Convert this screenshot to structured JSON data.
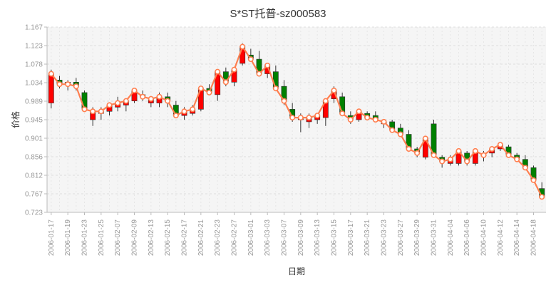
{
  "chart_data": {
    "type": "candlestick",
    "title": "S*ST托普-sz000583",
    "xlabel": "日期",
    "ylabel": "价格",
    "ylim": [
      0.723,
      1.167
    ],
    "y_ticks": [
      "1.167",
      "1.123",
      "1.078",
      "1.034",
      "0.989",
      "0.945",
      "0.901",
      "0.856",
      "0.812",
      "0.767",
      "0.723"
    ],
    "x_tick_labels": [
      "2006-01-17",
      "2006-01-19",
      "2006-01-23",
      "2006-01-25",
      "2006-02-07",
      "2006-02-09",
      "2006-02-13",
      "2006-02-15",
      "2006-02-17",
      "2006-02-21",
      "2006-02-23",
      "2006-02-27",
      "2006-03-01",
      "2006-03-03",
      "2006-03-07",
      "2006-03-09",
      "2006-03-13",
      "2006-03-15",
      "2006-03-17",
      "2006-03-21",
      "2006-03-23",
      "2006-03-27",
      "2006-03-29",
      "2006-03-31",
      "2006-04-04",
      "2006-04-06",
      "2006-04-10",
      "2006-04-12",
      "2006-04-14",
      "2006-04-18"
    ],
    "grid": true,
    "colors": {
      "up": "#ff0000",
      "down": "#008000",
      "line": "#ff7f50",
      "grid": "#dddddd",
      "plot_bg": "#f5f5f5"
    },
    "candles": [
      {
        "o": 0.985,
        "h": 1.065,
        "l": 0.972,
        "c": 1.055
      },
      {
        "o": 1.04,
        "h": 1.05,
        "l": 1.02,
        "c": 1.03
      },
      {
        "o": 1.035,
        "h": 1.04,
        "l": 1.015,
        "c": 1.03
      },
      {
        "o": 1.035,
        "h": 1.045,
        "l": 1.015,
        "c": 1.025
      },
      {
        "o": 1.01,
        "h": 1.015,
        "l": 0.965,
        "c": 0.97
      },
      {
        "o": 0.945,
        "h": 0.975,
        "l": 0.93,
        "c": 0.965
      },
      {
        "o": 0.96,
        "h": 0.975,
        "l": 0.945,
        "c": 0.965
      },
      {
        "o": 0.965,
        "h": 0.985,
        "l": 0.955,
        "c": 0.98
      },
      {
        "o": 0.975,
        "h": 1.0,
        "l": 0.965,
        "c": 0.985
      },
      {
        "o": 0.98,
        "h": 0.995,
        "l": 0.965,
        "c": 0.99
      },
      {
        "o": 0.99,
        "h": 1.02,
        "l": 0.985,
        "c": 1.015
      },
      {
        "o": 1.005,
        "h": 1.015,
        "l": 0.99,
        "c": 1.0
      },
      {
        "o": 0.985,
        "h": 1.0,
        "l": 0.975,
        "c": 0.995
      },
      {
        "o": 0.985,
        "h": 1.01,
        "l": 0.975,
        "c": 1.0
      },
      {
        "o": 1.0,
        "h": 1.01,
        "l": 0.975,
        "c": 0.99
      },
      {
        "o": 0.98,
        "h": 0.99,
        "l": 0.95,
        "c": 0.955
      },
      {
        "o": 0.955,
        "h": 0.975,
        "l": 0.945,
        "c": 0.965
      },
      {
        "o": 0.96,
        "h": 0.98,
        "l": 0.955,
        "c": 0.97
      },
      {
        "o": 0.97,
        "h": 1.025,
        "l": 0.965,
        "c": 1.02
      },
      {
        "o": 1.02,
        "h": 1.03,
        "l": 1.005,
        "c": 1.01
      },
      {
        "o": 1.005,
        "h": 1.065,
        "l": 0.99,
        "c": 1.06
      },
      {
        "o": 1.06,
        "h": 1.07,
        "l": 1.025,
        "c": 1.035
      },
      {
        "o": 1.035,
        "h": 1.07,
        "l": 1.025,
        "c": 1.065
      },
      {
        "o": 1.08,
        "h": 1.128,
        "l": 1.075,
        "c": 1.12
      },
      {
        "o": 1.1,
        "h": 1.115,
        "l": 1.085,
        "c": 1.09
      },
      {
        "o": 1.09,
        "h": 1.11,
        "l": 1.05,
        "c": 1.055
      },
      {
        "o": 1.055,
        "h": 1.08,
        "l": 1.045,
        "c": 1.075
      },
      {
        "o": 1.06,
        "h": 1.075,
        "l": 1.015,
        "c": 1.02
      },
      {
        "o": 1.025,
        "h": 1.04,
        "l": 0.98,
        "c": 0.99
      },
      {
        "o": 0.97,
        "h": 0.985,
        "l": 0.94,
        "c": 0.95
      },
      {
        "o": 0.945,
        "h": 0.96,
        "l": 0.915,
        "c": 0.95
      },
      {
        "o": 0.94,
        "h": 0.96,
        "l": 0.925,
        "c": 0.95
      },
      {
        "o": 0.945,
        "h": 0.96,
        "l": 0.935,
        "c": 0.955
      },
      {
        "o": 0.95,
        "h": 0.995,
        "l": 0.93,
        "c": 0.99
      },
      {
        "o": 0.995,
        "h": 1.025,
        "l": 0.985,
        "c": 1.015
      },
      {
        "o": 1.0,
        "h": 1.01,
        "l": 0.955,
        "c": 0.96
      },
      {
        "o": 0.955,
        "h": 0.965,
        "l": 0.935,
        "c": 0.945
      },
      {
        "o": 0.945,
        "h": 0.97,
        "l": 0.94,
        "c": 0.965
      },
      {
        "o": 0.96,
        "h": 0.965,
        "l": 0.945,
        "c": 0.95
      },
      {
        "o": 0.955,
        "h": 0.965,
        "l": 0.94,
        "c": 0.945
      },
      {
        "o": 0.935,
        "h": 0.945,
        "l": 0.925,
        "c": 0.94
      },
      {
        "o": 0.94,
        "h": 0.945,
        "l": 0.915,
        "c": 0.92
      },
      {
        "o": 0.925,
        "h": 0.935,
        "l": 0.905,
        "c": 0.91
      },
      {
        "o": 0.91,
        "h": 0.92,
        "l": 0.87,
        "c": 0.875
      },
      {
        "o": 0.875,
        "h": 0.88,
        "l": 0.855,
        "c": 0.865
      },
      {
        "o": 0.855,
        "h": 0.905,
        "l": 0.85,
        "c": 0.9
      },
      {
        "o": 0.935,
        "h": 0.945,
        "l": 0.855,
        "c": 0.86
      },
      {
        "o": 0.855,
        "h": 0.86,
        "l": 0.83,
        "c": 0.845
      },
      {
        "o": 0.84,
        "h": 0.86,
        "l": 0.835,
        "c": 0.85
      },
      {
        "o": 0.84,
        "h": 0.875,
        "l": 0.835,
        "c": 0.87
      },
      {
        "o": 0.865,
        "h": 0.87,
        "l": 0.835,
        "c": 0.845
      },
      {
        "o": 0.84,
        "h": 0.875,
        "l": 0.835,
        "c": 0.87
      },
      {
        "o": 0.86,
        "h": 0.87,
        "l": 0.845,
        "c": 0.86
      },
      {
        "o": 0.865,
        "h": 0.88,
        "l": 0.855,
        "c": 0.875
      },
      {
        "o": 0.875,
        "h": 0.89,
        "l": 0.87,
        "c": 0.885
      },
      {
        "o": 0.88,
        "h": 0.885,
        "l": 0.855,
        "c": 0.86
      },
      {
        "o": 0.86,
        "h": 0.865,
        "l": 0.845,
        "c": 0.85
      },
      {
        "o": 0.85,
        "h": 0.86,
        "l": 0.825,
        "c": 0.83
      },
      {
        "o": 0.83,
        "h": 0.835,
        "l": 0.795,
        "c": 0.8
      },
      {
        "o": 0.78,
        "h": 0.795,
        "l": 0.755,
        "c": 0.76
      }
    ]
  }
}
